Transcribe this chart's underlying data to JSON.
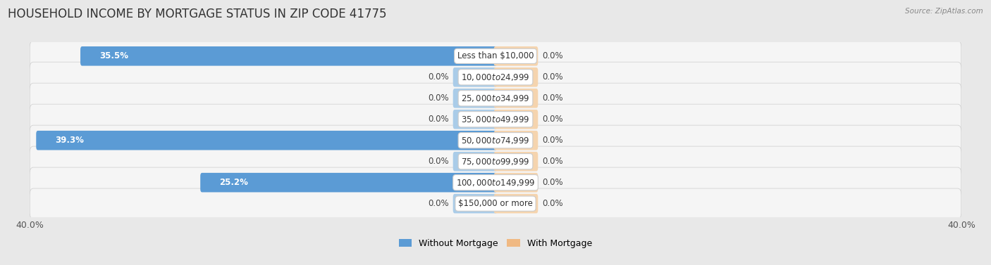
{
  "title": "HOUSEHOLD INCOME BY MORTGAGE STATUS IN ZIP CODE 41775",
  "source": "Source: ZipAtlas.com",
  "categories": [
    "Less than $10,000",
    "$10,000 to $24,999",
    "$25,000 to $34,999",
    "$35,000 to $49,999",
    "$50,000 to $74,999",
    "$75,000 to $99,999",
    "$100,000 to $149,999",
    "$150,000 or more"
  ],
  "without_mortgage": [
    35.5,
    0.0,
    0.0,
    0.0,
    39.3,
    0.0,
    25.2,
    0.0
  ],
  "with_mortgage": [
    0.0,
    0.0,
    0.0,
    0.0,
    0.0,
    0.0,
    0.0,
    0.0
  ],
  "color_without": "#5b9bd5",
  "color_with": "#f0b983",
  "color_without_stub": "#aacce8",
  "color_with_stub": "#f5d4ae",
  "x_max": 40.0,
  "x_min": -40.0,
  "stub_size": 3.5,
  "axis_labels": [
    "40.0%",
    "40.0%"
  ],
  "legend_labels": [
    "Without Mortgage",
    "With Mortgage"
  ],
  "background_color": "#e8e8e8",
  "row_color": "#f5f5f5",
  "title_fontsize": 12,
  "cat_fontsize": 8.5,
  "val_fontsize": 8.5,
  "tick_fontsize": 9
}
